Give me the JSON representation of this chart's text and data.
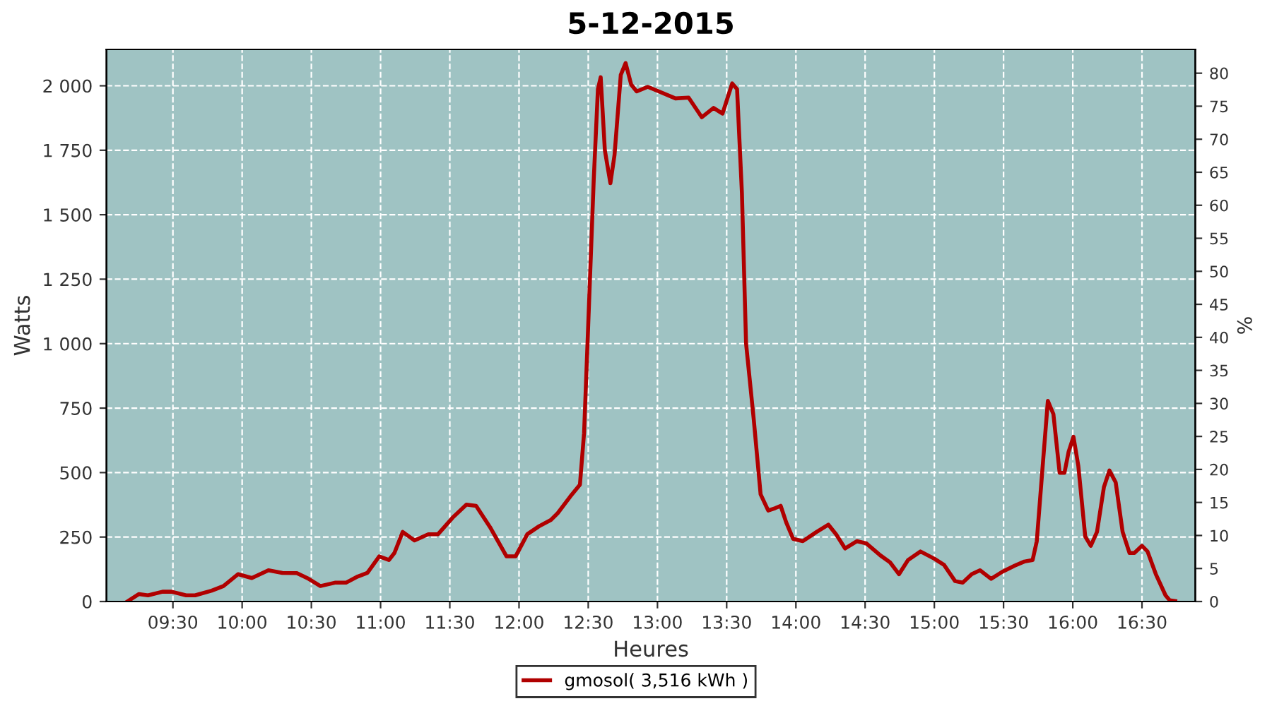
{
  "chart_data": {
    "type": "line",
    "title": "5-12-2015",
    "xlabel": "Heures",
    "ylabel": "Watts",
    "y2label": "%",
    "xlim": [
      9.02,
      16.885
    ],
    "xticks": [
      {
        "value": 9.5,
        "label": "09:30"
      },
      {
        "value": 10,
        "label": "10:00"
      },
      {
        "value": 10.5,
        "label": "10:30"
      },
      {
        "value": 11,
        "label": "11:00"
      },
      {
        "value": 11.5,
        "label": "11:30"
      },
      {
        "value": 12,
        "label": "12:00"
      },
      {
        "value": 12.5,
        "label": "12:30"
      },
      {
        "value": 13,
        "label": "13:00"
      },
      {
        "value": 13.5,
        "label": "13:30"
      },
      {
        "value": 14,
        "label": "14:00"
      },
      {
        "value": 14.5,
        "label": "14:30"
      },
      {
        "value": 15,
        "label": "15:00"
      },
      {
        "value": 15.5,
        "label": "15:30"
      },
      {
        "value": 16,
        "label": "16:00"
      },
      {
        "value": 16.5,
        "label": "16:30"
      }
    ],
    "ylim": [
      0,
      2141
    ],
    "yticks": [
      0,
      250,
      500,
      750,
      {
        "value": 1000,
        "label": "1 000"
      },
      {
        "value": 1250,
        "label": "1 250"
      },
      {
        "value": 1500,
        "label": "1 500"
      },
      {
        "value": 1750,
        "label": "1 750"
      },
      {
        "value": 2000,
        "label": "2 000"
      }
    ],
    "y2lim": [
      0,
      83.6
    ],
    "y2ticks": [
      0,
      5,
      10,
      15,
      20,
      25,
      30,
      35,
      40,
      45,
      50,
      55,
      60,
      65,
      70,
      75,
      80
    ],
    "grid": true,
    "legend": "bottom",
    "marker": "none",
    "line_style": "solid",
    "series": [
      {
        "name": "gmosol( 3,516 kWh )",
        "color": "#b00000",
        "x": [
          9.17,
          9.255,
          9.32,
          9.425,
          9.49,
          9.595,
          9.66,
          9.78,
          9.865,
          9.97,
          10.07,
          10.19,
          10.29,
          10.395,
          10.48,
          10.565,
          10.67,
          10.75,
          10.835,
          10.905,
          10.99,
          11.06,
          11.1,
          11.16,
          11.245,
          11.345,
          11.415,
          11.52,
          11.62,
          11.69,
          11.79,
          11.91,
          11.975,
          12.06,
          12.145,
          12.23,
          12.28,
          12.37,
          12.44,
          12.47,
          12.5,
          12.54,
          12.57,
          12.59,
          12.62,
          12.66,
          12.69,
          12.735,
          12.77,
          12.81,
          12.85,
          12.93,
          13.01,
          13.13,
          13.225,
          13.32,
          13.405,
          13.47,
          13.54,
          13.575,
          13.61,
          13.64,
          13.695,
          13.745,
          13.8,
          13.85,
          13.89,
          13.93,
          13.98,
          14.05,
          14.15,
          14.235,
          14.29,
          14.355,
          14.44,
          14.51,
          14.61,
          14.68,
          14.745,
          14.81,
          14.9,
          15.0,
          15.07,
          15.15,
          15.205,
          15.27,
          15.33,
          15.41,
          15.49,
          15.58,
          15.65,
          15.71,
          15.74,
          15.78,
          15.82,
          15.86,
          15.905,
          15.94,
          15.97,
          16.005,
          16.04,
          16.09,
          16.13,
          16.175,
          16.225,
          16.265,
          16.31,
          16.36,
          16.41,
          16.445,
          16.5,
          16.54,
          16.6,
          16.67,
          16.7,
          16.74
        ],
        "values": [
          0,
          29,
          24,
          38,
          38,
          24,
          24,
          42,
          60,
          106,
          91,
          121,
          111,
          110,
          88,
          60,
          73,
          73,
          97,
          111,
          175,
          161,
          188,
          270,
          237,
          261,
          261,
          325,
          376,
          371,
          289,
          175,
          175,
          261,
          292,
          316,
          343,
          407,
          453,
          654,
          1074,
          1640,
          1987,
          2033,
          1750,
          1622,
          1732,
          2042,
          2088,
          2005,
          1978,
          1996,
          1978,
          1951,
          1954,
          1878,
          1914,
          1892,
          2009,
          1987,
          1585,
          1001,
          709,
          416,
          353,
          362,
          371,
          307,
          243,
          234,
          270,
          298,
          261,
          206,
          234,
          225,
          179,
          152,
          106,
          161,
          194,
          166,
          142,
          79,
          73,
          106,
          121,
          88,
          115,
          139,
          155,
          161,
          234,
          508,
          778,
          727,
          499,
          499,
          581,
          639,
          526,
          252,
          216,
          270,
          444,
          508,
          462,
          270,
          188,
          188,
          216,
          194,
          106,
          24,
          5,
          2
        ]
      }
    ]
  }
}
